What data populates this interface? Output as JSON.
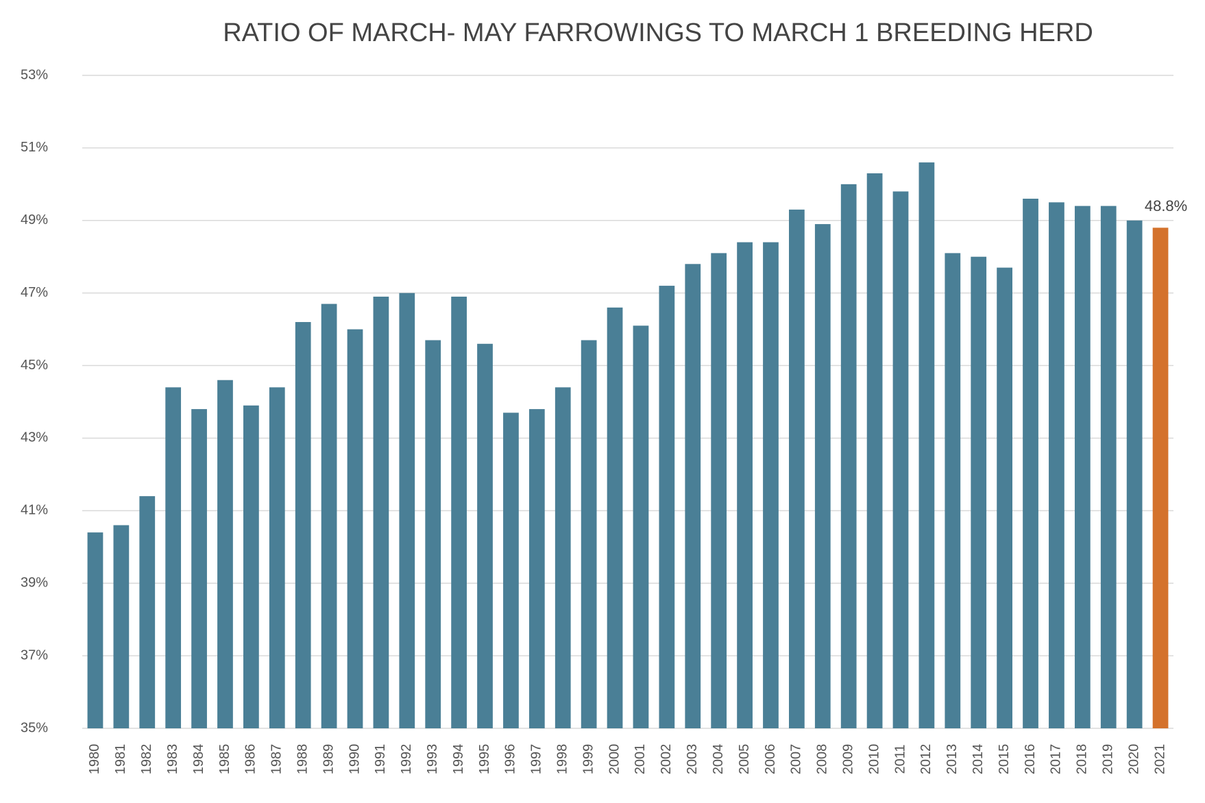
{
  "chart_data": {
    "type": "bar",
    "title": "RATIO OF MARCH- MAY FARROWINGS TO MARCH 1 BREEDING HERD",
    "categories": [
      "1980",
      "1981",
      "1982",
      "1983",
      "1984",
      "1985",
      "1986",
      "1987",
      "1988",
      "1989",
      "1990",
      "1991",
      "1992",
      "1993",
      "1994",
      "1995",
      "1996",
      "1997",
      "1998",
      "1999",
      "2000",
      "2001",
      "2002",
      "2003",
      "2004",
      "2005",
      "2006",
      "2007",
      "2008",
      "2009",
      "2010",
      "2011",
      "2012",
      "2013",
      "2014",
      "2015",
      "2016",
      "2017",
      "2018",
      "2019",
      "2020",
      "2021"
    ],
    "values": [
      40.4,
      40.6,
      41.4,
      44.4,
      43.8,
      44.6,
      43.9,
      44.4,
      46.2,
      46.7,
      46.0,
      46.9,
      47.0,
      45.7,
      46.9,
      45.6,
      43.7,
      43.8,
      44.4,
      45.7,
      46.6,
      46.1,
      47.2,
      47.8,
      48.1,
      48.4,
      48.4,
      49.3,
      48.9,
      50.0,
      50.3,
      49.8,
      50.6,
      48.1,
      48.0,
      47.7,
      49.6,
      49.5,
      49.4,
      49.4,
      49.0,
      48.8
    ],
    "value_labels": [
      null,
      null,
      null,
      null,
      null,
      null,
      null,
      null,
      null,
      null,
      null,
      null,
      null,
      null,
      null,
      null,
      null,
      null,
      null,
      null,
      null,
      null,
      null,
      null,
      null,
      null,
      null,
      null,
      null,
      null,
      null,
      null,
      null,
      null,
      null,
      null,
      null,
      null,
      null,
      null,
      null,
      "48.8%"
    ],
    "colors": [
      "#4a7f96",
      "#4a7f96",
      "#4a7f96",
      "#4a7f96",
      "#4a7f96",
      "#4a7f96",
      "#4a7f96",
      "#4a7f96",
      "#4a7f96",
      "#4a7f96",
      "#4a7f96",
      "#4a7f96",
      "#4a7f96",
      "#4a7f96",
      "#4a7f96",
      "#4a7f96",
      "#4a7f96",
      "#4a7f96",
      "#4a7f96",
      "#4a7f96",
      "#4a7f96",
      "#4a7f96",
      "#4a7f96",
      "#4a7f96",
      "#4a7f96",
      "#4a7f96",
      "#4a7f96",
      "#4a7f96",
      "#4a7f96",
      "#4a7f96",
      "#4a7f96",
      "#4a7f96",
      "#4a7f96",
      "#4a7f96",
      "#4a7f96",
      "#4a7f96",
      "#4a7f96",
      "#4a7f96",
      "#4a7f96",
      "#4a7f96",
      "#4a7f96",
      "#d4722c"
    ],
    "ylim": [
      35,
      53
    ],
    "yticks": [
      {
        "value": 35,
        "label": "35%"
      },
      {
        "value": 37,
        "label": "37%"
      },
      {
        "value": 39,
        "label": "39%"
      },
      {
        "value": 41,
        "label": "41%"
      },
      {
        "value": 43,
        "label": "43%"
      },
      {
        "value": 45,
        "label": "45%"
      },
      {
        "value": 47,
        "label": "47%"
      },
      {
        "value": 49,
        "label": "49%"
      },
      {
        "value": 51,
        "label": "51%"
      },
      {
        "value": 53,
        "label": "53%"
      }
    ],
    "grid": true
  }
}
